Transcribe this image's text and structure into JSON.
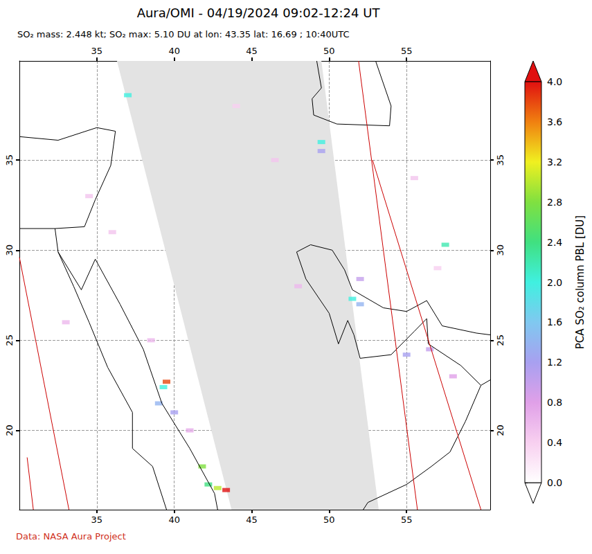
{
  "chart_data": {
    "type": "map",
    "title": "Aura/OMI - 04/19/2024 09:02-12:24 UT",
    "subtitle": "SO₂ mass: 2.448 kt; SO₂ max: 5.10 DU at lon: 43.35 lat: 16.69 ; 10:40UTC",
    "credit": "Data: NASA Aura Project",
    "xlim": [
      30,
      60.4
    ],
    "xticks": [
      35,
      40,
      45,
      50,
      55
    ],
    "ylim": [
      15.6,
      40.5
    ],
    "yticks": [
      20,
      25,
      30,
      35
    ],
    "grid": true,
    "no_data_swath": [
      [
        36.3,
        40.5
      ],
      [
        49.5,
        40.5
      ],
      [
        53.2,
        15.6
      ],
      [
        43.7,
        15.6
      ]
    ],
    "orbit_edges": [
      [
        [
          30,
          29.6
        ],
        [
          33.2,
          15.6
        ]
      ],
      [
        [
          30.5,
          18.5
        ],
        [
          30.9,
          15.6
        ]
      ],
      [
        [
          51.9,
          40.5
        ],
        [
          55.7,
          15.6
        ]
      ],
      [
        [
          52.8,
          35
        ],
        [
          59.8,
          15.6
        ]
      ]
    ],
    "coastlines": [
      [
        [
          34.9,
          29.5
        ],
        [
          36.5,
          27
        ],
        [
          38,
          24.5
        ],
        [
          39.2,
          21.5
        ],
        [
          41,
          19
        ],
        [
          42.6,
          16.5
        ],
        [
          42.8,
          15.6
        ]
      ],
      [
        [
          60.4,
          22.8
        ],
        [
          59.8,
          22.5
        ],
        [
          58.5,
          23.6
        ],
        [
          56.4,
          24.8
        ],
        [
          56.3,
          26.2
        ],
        [
          55.5,
          25.5
        ],
        [
          54,
          24.2
        ],
        [
          52,
          24
        ],
        [
          51.6,
          25.3
        ],
        [
          51.2,
          26.1
        ],
        [
          50.6,
          24.8
        ],
        [
          50,
          26.5
        ],
        [
          48.5,
          28.4
        ],
        [
          47.9,
          29.9
        ],
        [
          48.8,
          30.3
        ],
        [
          50.2,
          30
        ],
        [
          51,
          28.9
        ],
        [
          51.5,
          27.8
        ],
        [
          53.5,
          26.8
        ],
        [
          55,
          26.6
        ],
        [
          56.3,
          27.2
        ],
        [
          57.3,
          25.8
        ],
        [
          59.5,
          25.4
        ],
        [
          60.4,
          25.3
        ]
      ],
      [
        [
          59.8,
          22.5
        ],
        [
          58.8,
          20.5
        ],
        [
          57.8,
          18.8
        ],
        [
          56.6,
          18
        ],
        [
          55,
          17
        ],
        [
          52.5,
          16
        ],
        [
          52.2,
          15.6
        ]
      ],
      [
        [
          30,
          31.2
        ],
        [
          32.3,
          31.2
        ],
        [
          34.2,
          31.3
        ],
        [
          34.9,
          32.8
        ],
        [
          35.9,
          34.7
        ],
        [
          36.2,
          36.6
        ],
        [
          35,
          36.8
        ],
        [
          32.5,
          36.1
        ],
        [
          30,
          36.3
        ]
      ],
      [
        [
          32.3,
          31.2
        ],
        [
          32.5,
          29.9
        ],
        [
          33.5,
          28
        ],
        [
          34.5,
          26
        ],
        [
          35.7,
          23.5
        ],
        [
          37.3,
          21
        ],
        [
          37.3,
          19
        ],
        [
          38.6,
          18
        ],
        [
          39.5,
          15.6
        ]
      ],
      [
        [
          32.5,
          29.9
        ],
        [
          34,
          27.8
        ],
        [
          34.9,
          29.5
        ]
      ],
      [
        [
          53,
          40.5
        ],
        [
          54,
          38
        ],
        [
          53.9,
          36.9
        ],
        [
          50.5,
          37
        ],
        [
          49,
          37.5
        ],
        [
          48.9,
          38.4
        ],
        [
          49.5,
          39
        ],
        [
          49.2,
          40.5
        ]
      ]
    ],
    "pixels": {
      "lon": [
        39.5,
        39.3,
        39.0,
        40.0,
        41.8,
        42.2,
        43.35,
        42.8,
        51.5,
        52.0,
        49.5,
        49.5,
        37.0,
        57.5,
        56.5,
        55.0,
        52.0,
        58.0,
        33.0,
        36.0,
        44.0,
        46.5,
        48.0,
        55.5,
        57.0,
        34.5,
        38.5,
        41.0
      ],
      "lat": [
        22.7,
        22.4,
        21.5,
        21.0,
        18.0,
        17.0,
        16.69,
        16.8,
        27.3,
        27.0,
        36.0,
        35.5,
        38.6,
        30.3,
        24.5,
        24.2,
        28.4,
        23.0,
        26.0,
        31.0,
        38.0,
        35.0,
        28.0,
        34.0,
        29.0,
        33.0,
        25.0,
        20.0
      ],
      "values": [
        3.8,
        2.0,
        1.4,
        1.2,
        2.8,
        2.4,
        5.1,
        3.0,
        2.0,
        1.4,
        2.0,
        1.2,
        2.0,
        2.2,
        1.0,
        1.2,
        1.0,
        0.8,
        0.6,
        0.5,
        0.4,
        0.5,
        0.6,
        0.5,
        0.4,
        0.5,
        0.6,
        0.7
      ]
    },
    "colorbar": {
      "label": "PCA SO₂ column PBL [DU]",
      "range": [
        0,
        4
      ],
      "ticks": [
        {
          "value": 0,
          "label": "0.0"
        },
        {
          "value": 0.4,
          "label": "0.4"
        },
        {
          "value": 0.8,
          "label": "0.8"
        },
        {
          "value": 1.2,
          "label": "1.2"
        },
        {
          "value": 1.6,
          "label": "1.6"
        },
        {
          "value": 2,
          "label": "2.0"
        },
        {
          "value": 2.4,
          "label": "2.4"
        },
        {
          "value": 2.8,
          "label": "2.8"
        },
        {
          "value": 3.2,
          "label": "3.2"
        },
        {
          "value": 3.6,
          "label": "3.6"
        },
        {
          "value": 4,
          "label": "4.0"
        }
      ]
    }
  }
}
